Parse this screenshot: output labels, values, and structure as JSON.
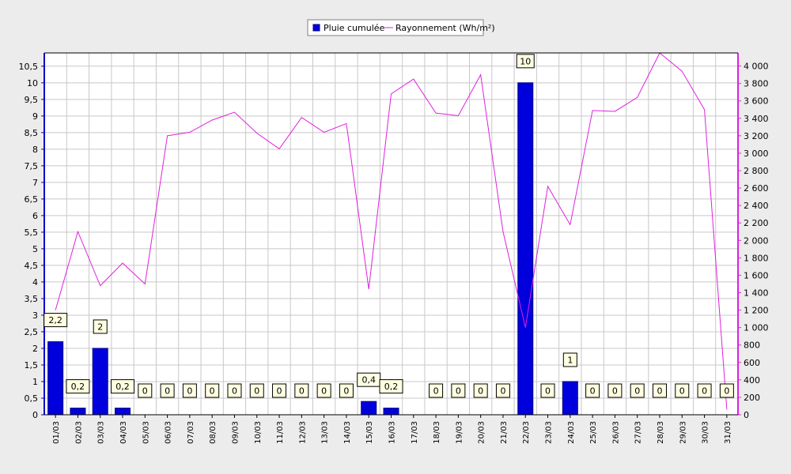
{
  "chart_data": {
    "type": "bar",
    "categories": [
      "01/03",
      "02/03",
      "03/03",
      "04/03",
      "05/03",
      "06/03",
      "07/03",
      "08/03",
      "09/03",
      "10/03",
      "11/03",
      "12/03",
      "13/03",
      "14/03",
      "15/03",
      "16/03",
      "17/03",
      "18/03",
      "19/03",
      "20/03",
      "21/03",
      "22/03",
      "23/03",
      "24/03",
      "25/03",
      "26/03",
      "27/03",
      "28/03",
      "29/03",
      "30/03",
      "31/03"
    ],
    "series": [
      {
        "name": "Pluie cumulée",
        "type": "bar",
        "axis": "left",
        "color": "#0000dd",
        "values": [
          2.2,
          0.2,
          2,
          0.2,
          0,
          0,
          0,
          0,
          0,
          0,
          0,
          0,
          0,
          0,
          0.4,
          0.2,
          null,
          0,
          0,
          0,
          0,
          10,
          0,
          1,
          0,
          0,
          0,
          0,
          0,
          0,
          0
        ],
        "labels": [
          "2,2",
          "0,2",
          "2",
          "0,2",
          "0",
          "0",
          "0",
          "0",
          "0",
          "0",
          "0",
          "0",
          "0",
          "0",
          "0,4",
          "0,2",
          "",
          "0",
          "0",
          "0",
          "0",
          "10",
          "0",
          "1",
          "0",
          "0",
          "0",
          "0",
          "0",
          "0",
          "0"
        ]
      },
      {
        "name": "Rayonnement (Wh/m²)",
        "type": "line",
        "axis": "right",
        "color": "#e020e0",
        "values": [
          1200,
          2100,
          1480,
          1740,
          1500,
          3200,
          3240,
          3380,
          3470,
          3230,
          3050,
          3410,
          3240,
          3340,
          1440,
          3680,
          3850,
          3460,
          3430,
          3900,
          2100,
          1000,
          2620,
          2180,
          3490,
          3480,
          3640,
          4150,
          3940,
          3500,
          60
        ]
      }
    ],
    "y_left": {
      "ylim": [
        0,
        10.9
      ],
      "ticks": [
        0,
        0.5,
        1,
        1.5,
        2,
        2.5,
        3,
        3.5,
        4,
        4.5,
        5,
        5.5,
        6,
        6.5,
        7,
        7.5,
        8,
        8.5,
        9,
        9.5,
        10,
        10.5
      ],
      "tick_labels": [
        "0",
        "0,5",
        "1",
        "1,5",
        "2",
        "2,5",
        "3",
        "3,5",
        "4",
        "4,5",
        "5",
        "5,5",
        "6",
        "6,5",
        "7",
        "7,5",
        "8",
        "8,5",
        "9",
        "9,5",
        "10",
        "10,5"
      ],
      "color": "#0000cc"
    },
    "y_right": {
      "ylim": [
        0,
        4150
      ],
      "ticks": [
        0,
        200,
        400,
        600,
        800,
        1000,
        1200,
        1400,
        1600,
        1800,
        2000,
        2200,
        2400,
        2600,
        2800,
        3000,
        3200,
        3400,
        3600,
        3800,
        4000
      ],
      "tick_labels": [
        "0",
        "200",
        "400",
        "600",
        "800",
        "1 000",
        "1 200",
        "1 400",
        "1 600",
        "1 800",
        "2 000",
        "2 200",
        "2 400",
        "2 600",
        "2 800",
        "3 000",
        "3 200",
        "3 400",
        "3 600",
        "3 800",
        "4 000"
      ],
      "color": "#e020e0"
    },
    "grid": true,
    "legend": {
      "position": "top-center"
    },
    "title": "",
    "xlabel": "",
    "ylabel": ""
  }
}
